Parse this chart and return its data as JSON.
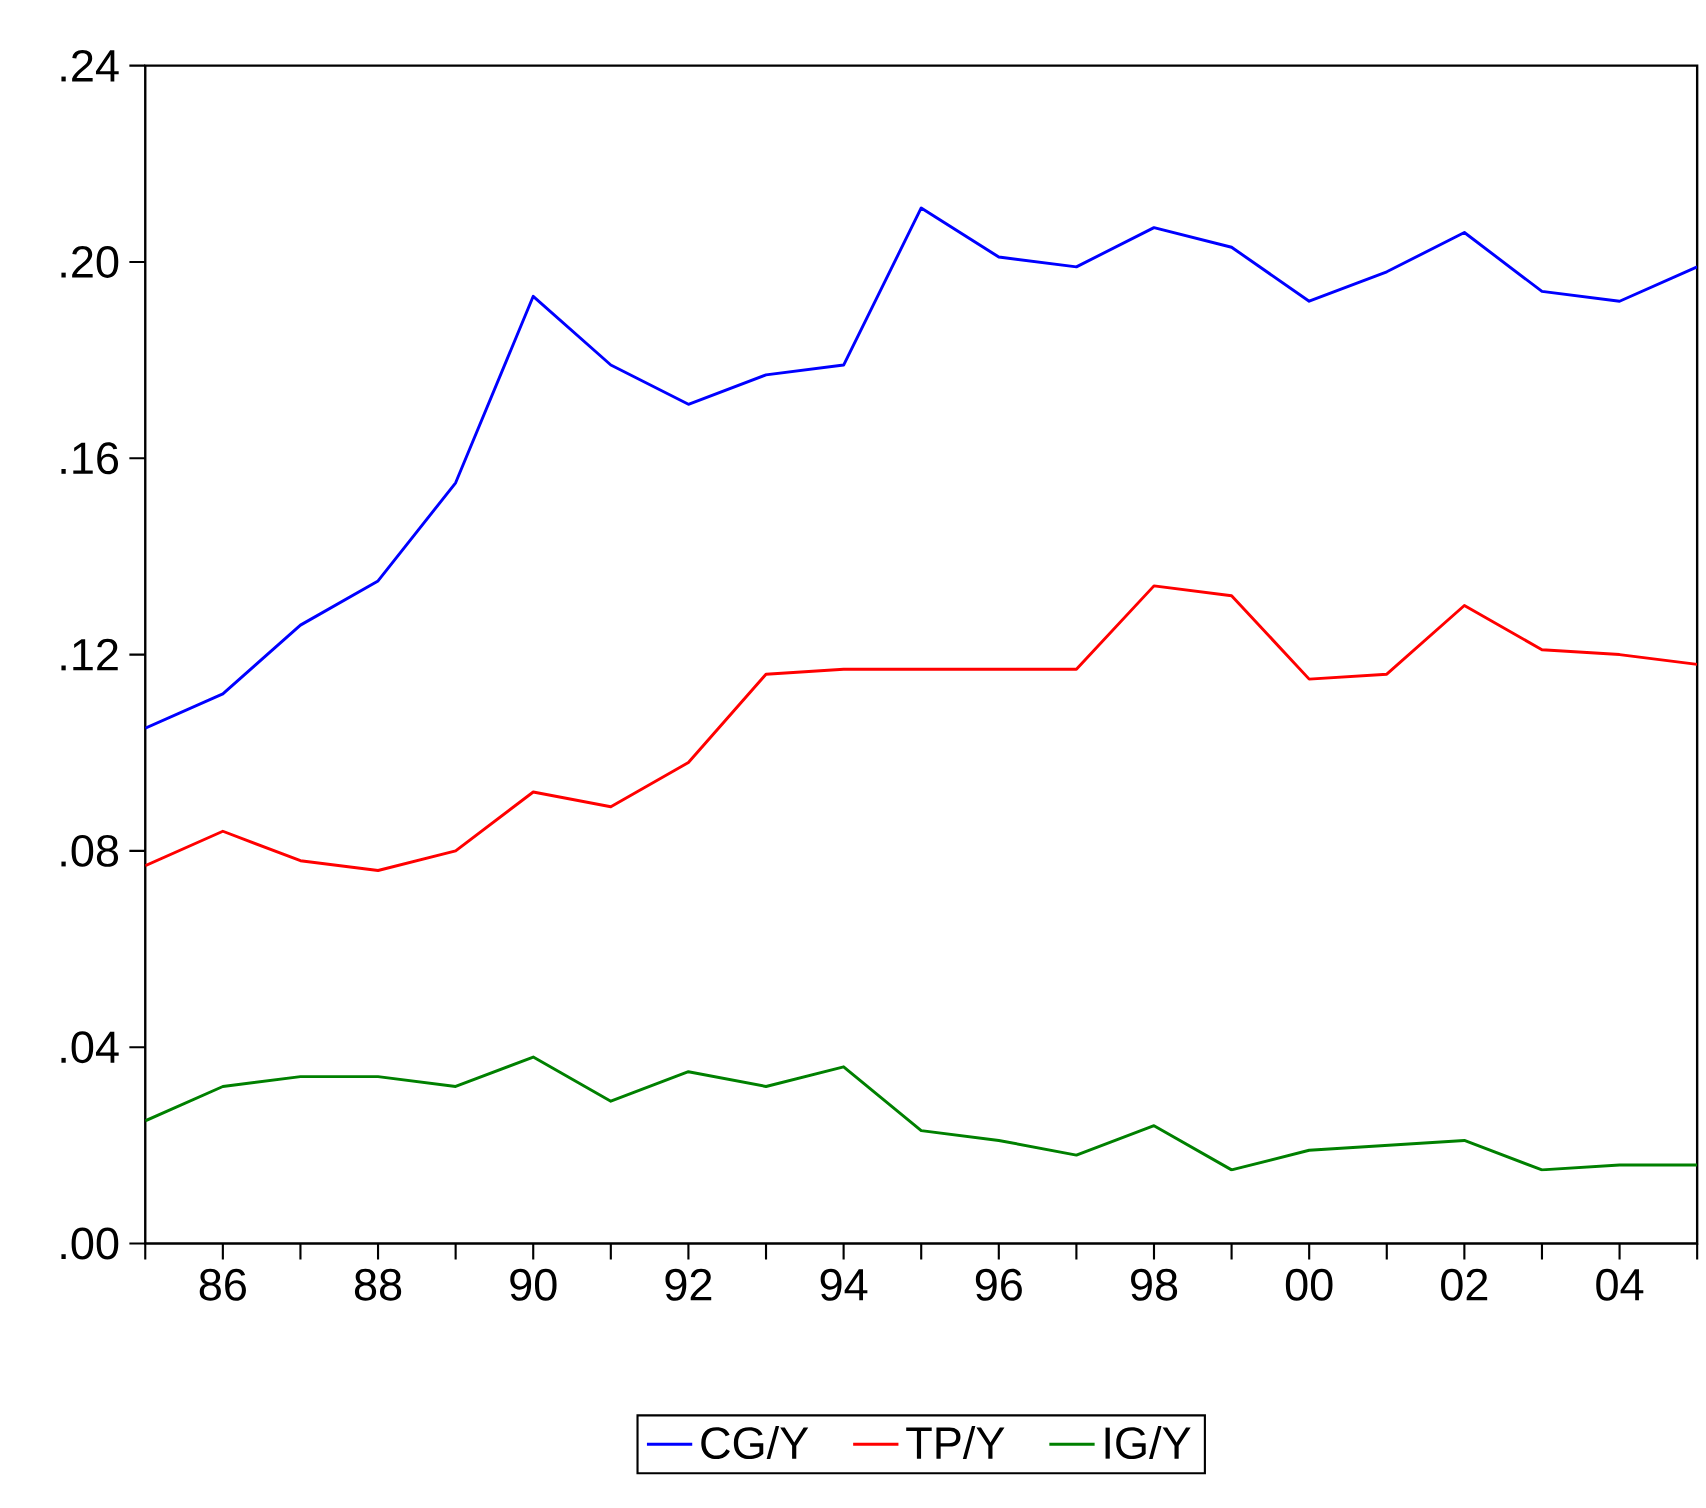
{
  "chart_data": {
    "type": "line",
    "x": [
      1985,
      1986,
      1987,
      1988,
      1989,
      1990,
      1991,
      1992,
      1993,
      1994,
      1995,
      1996,
      1997,
      1998,
      1999,
      2000,
      2001,
      2002,
      2003,
      2004,
      2005
    ],
    "series": [
      {
        "name": "CG/Y",
        "color": "#0000ff",
        "values": [
          0.105,
          0.112,
          0.126,
          0.135,
          0.155,
          0.193,
          0.179,
          0.171,
          0.177,
          0.179,
          0.211,
          0.201,
          0.199,
          0.207,
          0.203,
          0.192,
          0.198,
          0.206,
          0.194,
          0.192,
          0.199
        ]
      },
      {
        "name": "TP/Y",
        "color": "#ff0000",
        "values": [
          0.077,
          0.084,
          0.078,
          0.076,
          0.08,
          0.092,
          0.089,
          0.098,
          0.116,
          0.117,
          0.117,
          0.117,
          0.117,
          0.134,
          0.132,
          0.115,
          0.116,
          0.13,
          0.121,
          0.12,
          0.118
        ]
      },
      {
        "name": "IG/Y",
        "color": "#008000",
        "values": [
          0.025,
          0.032,
          0.034,
          0.034,
          0.032,
          0.038,
          0.029,
          0.035,
          0.032,
          0.036,
          0.023,
          0.021,
          0.018,
          0.024,
          0.015,
          0.019,
          0.02,
          0.021,
          0.015,
          0.016,
          0.016
        ]
      }
    ],
    "xlim": [
      1985,
      2005
    ],
    "xticks": [
      {
        "value": 1985,
        "label": null
      },
      {
        "value": 1986,
        "label": "86"
      },
      {
        "value": 1987,
        "label": null
      },
      {
        "value": 1988,
        "label": "88"
      },
      {
        "value": 1989,
        "label": null
      },
      {
        "value": 1990,
        "label": "90"
      },
      {
        "value": 1991,
        "label": null
      },
      {
        "value": 1992,
        "label": "92"
      },
      {
        "value": 1993,
        "label": null
      },
      {
        "value": 1994,
        "label": "94"
      },
      {
        "value": 1995,
        "label": null
      },
      {
        "value": 1996,
        "label": "96"
      },
      {
        "value": 1997,
        "label": null
      },
      {
        "value": 1998,
        "label": "98"
      },
      {
        "value": 1999,
        "label": null
      },
      {
        "value": 2000,
        "label": "00"
      },
      {
        "value": 2001,
        "label": null
      },
      {
        "value": 2002,
        "label": "02"
      },
      {
        "value": 2003,
        "label": null
      },
      {
        "value": 2004,
        "label": "04"
      },
      {
        "value": 2005,
        "label": null
      }
    ],
    "ylim": [
      0,
      0.24
    ],
    "yticks": [
      {
        "value": 0,
        "label": ".00"
      },
      {
        "value": 0.04,
        "label": ".04"
      },
      {
        "value": 0.08,
        "label": ".08"
      },
      {
        "value": 0.12,
        "label": ".12"
      },
      {
        "value": 0.16,
        "label": ".16"
      },
      {
        "value": 0.2,
        "label": ".20"
      },
      {
        "value": 0.24,
        "label": ".24"
      }
    ],
    "legend": "bottom",
    "grid": false,
    "line_style": "solid",
    "marker": "none"
  }
}
